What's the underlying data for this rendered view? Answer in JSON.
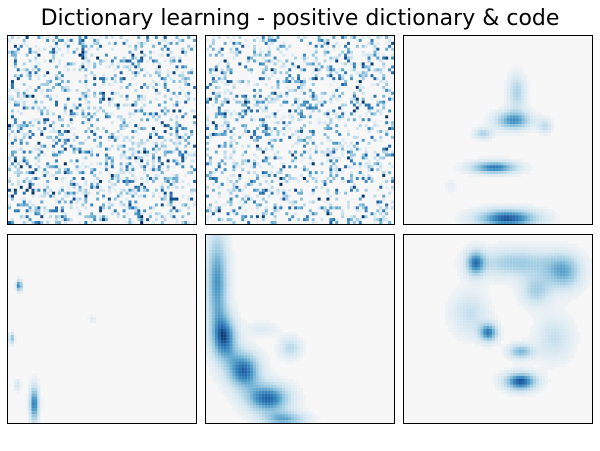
{
  "chart_data": {
    "type": "heatmap",
    "title": "Dictionary learning - positive dictionary & code",
    "colormap": "RdBu (positive half: white to blue)",
    "rows": 2,
    "cols": 3,
    "panels": [
      {
        "pattern": "sparse-noise",
        "seed": 7
      },
      {
        "pattern": "sparse-noise",
        "seed": 19
      },
      {
        "pattern": "face-strokes",
        "blobs": [
          {
            "cx": 0.58,
            "cy": 0.45,
            "rx": 0.1,
            "ry": 0.05,
            "v": 0.75
          },
          {
            "cx": 0.48,
            "cy": 0.7,
            "rx": 0.13,
            "ry": 0.035,
            "v": 0.85
          },
          {
            "cx": 0.55,
            "cy": 0.97,
            "rx": 0.17,
            "ry": 0.05,
            "v": 0.95
          },
          {
            "cx": 0.6,
            "cy": 0.3,
            "rx": 0.05,
            "ry": 0.1,
            "v": 0.45
          },
          {
            "cx": 0.42,
            "cy": 0.52,
            "rx": 0.05,
            "ry": 0.03,
            "v": 0.45
          },
          {
            "cx": 0.75,
            "cy": 0.48,
            "rx": 0.04,
            "ry": 0.04,
            "v": 0.35
          },
          {
            "cx": 0.25,
            "cy": 0.8,
            "rx": 0.03,
            "ry": 0.04,
            "v": 0.15
          }
        ]
      },
      {
        "pattern": "face-strokes",
        "blobs": [
          {
            "cx": 0.06,
            "cy": 0.27,
            "rx": 0.015,
            "ry": 0.03,
            "v": 0.9
          },
          {
            "cx": 0.14,
            "cy": 0.9,
            "rx": 0.025,
            "ry": 0.1,
            "v": 0.85
          },
          {
            "cx": 0.02,
            "cy": 0.55,
            "rx": 0.015,
            "ry": 0.03,
            "v": 0.6
          },
          {
            "cx": 0.45,
            "cy": 0.45,
            "rx": 0.02,
            "ry": 0.02,
            "v": 0.2
          },
          {
            "cx": 0.05,
            "cy": 0.8,
            "rx": 0.02,
            "ry": 0.03,
            "v": 0.3
          }
        ]
      },
      {
        "pattern": "face-strokes",
        "blobs": [
          {
            "cx": 0.06,
            "cy": 0.25,
            "rx": 0.06,
            "ry": 0.28,
            "v": 0.75
          },
          {
            "cx": 0.1,
            "cy": 0.55,
            "rx": 0.07,
            "ry": 0.12,
            "v": 0.8
          },
          {
            "cx": 0.2,
            "cy": 0.72,
            "rx": 0.09,
            "ry": 0.1,
            "v": 0.9
          },
          {
            "cx": 0.33,
            "cy": 0.87,
            "rx": 0.12,
            "ry": 0.08,
            "v": 0.9
          },
          {
            "cx": 0.42,
            "cy": 0.98,
            "rx": 0.12,
            "ry": 0.04,
            "v": 0.6
          },
          {
            "cx": 0.45,
            "cy": 0.6,
            "rx": 0.06,
            "ry": 0.06,
            "v": 0.4
          },
          {
            "cx": 0.3,
            "cy": 0.5,
            "rx": 0.08,
            "ry": 0.04,
            "v": 0.2
          }
        ]
      },
      {
        "pattern": "face-strokes",
        "blobs": [
          {
            "cx": 0.6,
            "cy": 0.15,
            "rx": 0.22,
            "ry": 0.08,
            "v": 0.5
          },
          {
            "cx": 0.85,
            "cy": 0.2,
            "rx": 0.1,
            "ry": 0.1,
            "v": 0.6
          },
          {
            "cx": 0.7,
            "cy": 0.3,
            "rx": 0.08,
            "ry": 0.08,
            "v": 0.45
          },
          {
            "cx": 0.45,
            "cy": 0.52,
            "rx": 0.05,
            "ry": 0.05,
            "v": 0.8
          },
          {
            "cx": 0.62,
            "cy": 0.62,
            "rx": 0.07,
            "ry": 0.04,
            "v": 0.6
          },
          {
            "cx": 0.62,
            "cy": 0.78,
            "rx": 0.09,
            "ry": 0.05,
            "v": 0.95
          },
          {
            "cx": 0.38,
            "cy": 0.15,
            "rx": 0.05,
            "ry": 0.07,
            "v": 0.7
          },
          {
            "cx": 0.35,
            "cy": 0.42,
            "rx": 0.1,
            "ry": 0.12,
            "v": 0.35
          },
          {
            "cx": 0.8,
            "cy": 0.55,
            "rx": 0.1,
            "ry": 0.12,
            "v": 0.35
          }
        ]
      }
    ]
  }
}
